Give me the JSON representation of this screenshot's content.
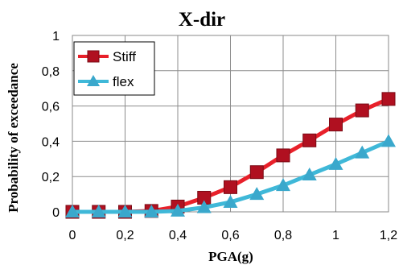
{
  "chart_data": {
    "type": "line",
    "title": "X-dir",
    "xlabel": "PGA(g)",
    "ylabel": "Probability of exceedance",
    "xlim": [
      0,
      1.2
    ],
    "ylim": [
      0,
      1
    ],
    "x_ticks": [
      "0",
      "0,2",
      "0,4",
      "0,6",
      "0,8",
      "1",
      "1,2"
    ],
    "y_ticks": [
      "0",
      "0,2",
      "0,4",
      "0,6",
      "0,8",
      "1"
    ],
    "grid": true,
    "legend_position": "top-left",
    "x": [
      0,
      0.1,
      0.2,
      0.3,
      0.4,
      0.5,
      0.6,
      0.7,
      0.8,
      0.9,
      1.0,
      1.1,
      1.2
    ],
    "series": [
      {
        "name": "Stiff",
        "marker": "square",
        "line_color": "#e8202a",
        "marker_color": "#b01020",
        "values": [
          0.0,
          0.0,
          0.0,
          0.005,
          0.03,
          0.08,
          0.14,
          0.225,
          0.32,
          0.405,
          0.495,
          0.575,
          0.64
        ]
      },
      {
        "name": "flex",
        "marker": "triangle",
        "line_color": "#3fb8d8",
        "marker_color": "#3aa8cc",
        "values": [
          0.0,
          0.0,
          0.0,
          0.0,
          0.005,
          0.025,
          0.055,
          0.1,
          0.15,
          0.21,
          0.27,
          0.335,
          0.4
        ]
      }
    ]
  }
}
